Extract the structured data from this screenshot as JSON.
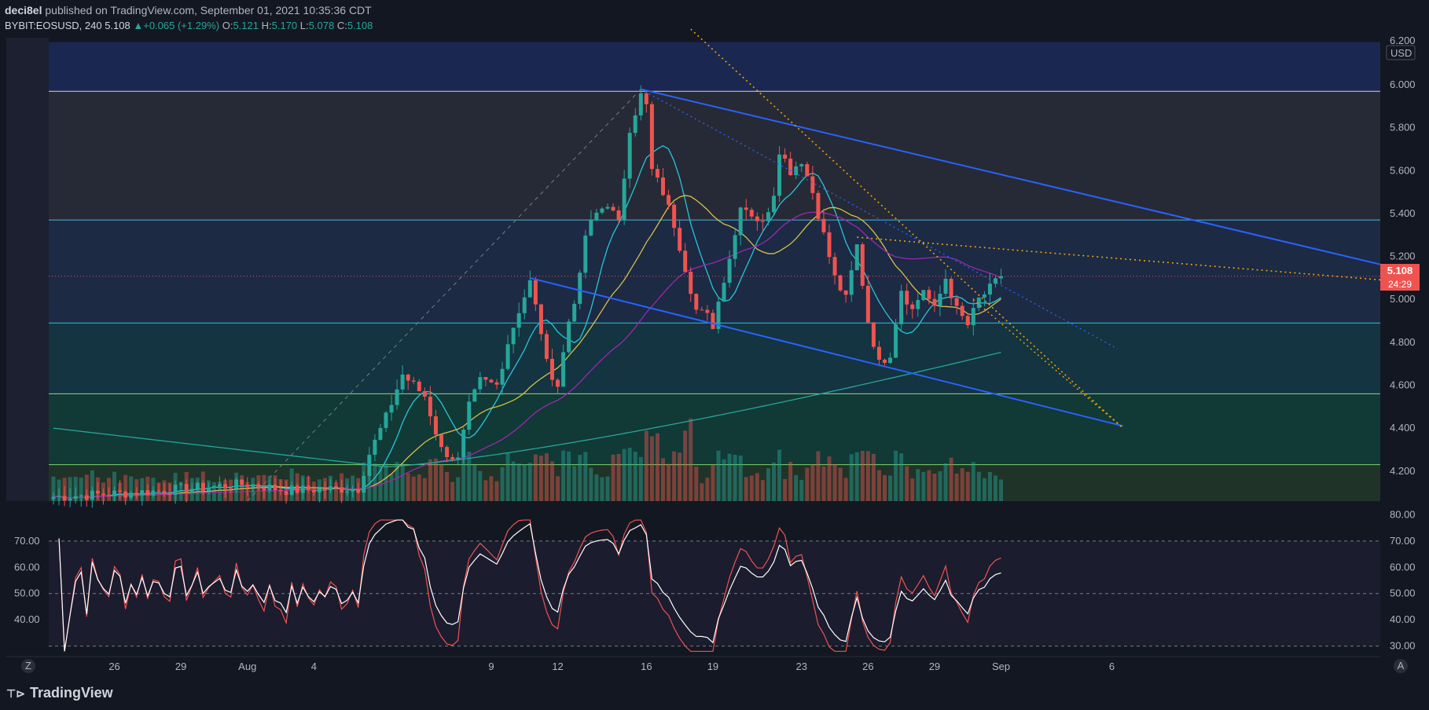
{
  "header": {
    "author": "deci8el",
    "published": "published on TradingView.com, September 01, 2021 10:35:36 CDT",
    "symbol": "BYBIT:EOSUSD, 240",
    "last": "5.108",
    "change_arrow": "▲",
    "change": "+0.065 (+1.29%)",
    "o_label": "O:",
    "o": "5.121",
    "h_label": "H:",
    "h": "5.170",
    "l_label": "L:",
    "l": "5.078",
    "c_label": "C:",
    "c": "5.108"
  },
  "price_axis": {
    "currency": "USD",
    "price_tag": "5.108",
    "countdown": "24:29",
    "top_label": "6.200"
  },
  "footer": {
    "brand": "TradingView",
    "left_button": "Z",
    "right_button": "A"
  },
  "colors": {
    "background": "#131722",
    "up": "#26a69a",
    "down": "#ef5350",
    "channel": "#2962ff",
    "fib_dots": "#f0a500",
    "ma_fast": "#26c6da",
    "ma_mid": "#d4c04a",
    "ma_slow": "#9c27b0",
    "ma_200": "#26a69a",
    "rsi": "#ef5350",
    "rsi2": "#ffffff"
  },
  "chart_data": [
    {
      "type": "candlestick",
      "symbol": "BYBIT:EOSUSD",
      "interval": "240",
      "ylabel": "USD",
      "ylim": [
        4.06,
        6.22
      ],
      "y_ticks": [
        "6.000",
        "5.800",
        "5.600",
        "5.400",
        "5.200",
        "5.000",
        "4.800",
        "4.600",
        "4.400",
        "4.200"
      ],
      "x_ticks": [
        "26",
        "29",
        "Aug",
        "4",
        "9",
        "12",
        "16",
        "19",
        "23",
        "26",
        "29",
        "Sep",
        "6"
      ],
      "x_tick_index": [
        11,
        23,
        35,
        47,
        79,
        91,
        107,
        119,
        135,
        147,
        159,
        171,
        191
      ],
      "close_anchors": [
        [
          0,
          4.08
        ],
        [
          15,
          4.1
        ],
        [
          25,
          4.12
        ],
        [
          35,
          4.14
        ],
        [
          42,
          4.11
        ],
        [
          55,
          4.12
        ],
        [
          57,
          4.28
        ],
        [
          60,
          4.45
        ],
        [
          63,
          4.65
        ],
        [
          67,
          4.55
        ],
        [
          70,
          4.3
        ],
        [
          73,
          4.25
        ],
        [
          75,
          4.5
        ],
        [
          77,
          4.62
        ],
        [
          80,
          4.6
        ],
        [
          82,
          4.8
        ],
        [
          84,
          4.95
        ],
        [
          86,
          5.08
        ],
        [
          88,
          4.85
        ],
        [
          89,
          4.7
        ],
        [
          91,
          4.6
        ],
        [
          93,
          4.9
        ],
        [
          95,
          5.1
        ],
        [
          96,
          5.3
        ],
        [
          98,
          5.4
        ],
        [
          100,
          5.45
        ],
        [
          102,
          5.35
        ],
        [
          104,
          5.8
        ],
        [
          106,
          5.95
        ],
        [
          107,
          5.9
        ],
        [
          108,
          5.6
        ],
        [
          110,
          5.5
        ],
        [
          112,
          5.35
        ],
        [
          114,
          5.15
        ],
        [
          116,
          4.95
        ],
        [
          118,
          4.92
        ],
        [
          119,
          4.88
        ],
        [
          121,
          5.1
        ],
        [
          123,
          5.3
        ],
        [
          124,
          5.45
        ],
        [
          126,
          5.4
        ],
        [
          128,
          5.35
        ],
        [
          130,
          5.5
        ],
        [
          131,
          5.7
        ],
        [
          133,
          5.6
        ],
        [
          135,
          5.65
        ],
        [
          137,
          5.5
        ],
        [
          139,
          5.3
        ],
        [
          141,
          5.1
        ],
        [
          143,
          5.0
        ],
        [
          145,
          5.25
        ],
        [
          147,
          4.9
        ],
        [
          149,
          4.7
        ],
        [
          151,
          4.75
        ],
        [
          153,
          5.05
        ],
        [
          155,
          4.95
        ],
        [
          157,
          5.05
        ],
        [
          159,
          4.95
        ],
        [
          161,
          5.1
        ],
        [
          163,
          4.95
        ],
        [
          165,
          4.88
        ],
        [
          167,
          5.0
        ],
        [
          169,
          5.05
        ],
        [
          171,
          5.108
        ]
      ],
      "volume_range": [
        0,
        1
      ],
      "moving_averages": [
        {
          "name": "MA fast",
          "color": "#26c6da"
        },
        {
          "name": "MA mid",
          "color": "#d4c04a"
        },
        {
          "name": "MA slow",
          "color": "#9c27b0"
        },
        {
          "name": "MA 200",
          "color": "#26a69a"
        }
      ],
      "fib_levels": [
        6.2,
        5.97,
        5.37,
        4.89,
        4.56,
        4.23
      ],
      "last_price": 5.108
    },
    {
      "type": "line",
      "panel": "RSI",
      "left_ticks": [
        "70.00",
        "60.00",
        "50.00",
        "40.00"
      ],
      "right_ticks": [
        "80.00",
        "70.00",
        "60.00",
        "50.00",
        "40.00",
        "30.00"
      ],
      "ylim": [
        26,
        84
      ],
      "levels": [
        70,
        50,
        30
      ],
      "series": [
        {
          "color": "#ef5350"
        },
        {
          "color": "#ffffff"
        }
      ]
    }
  ]
}
